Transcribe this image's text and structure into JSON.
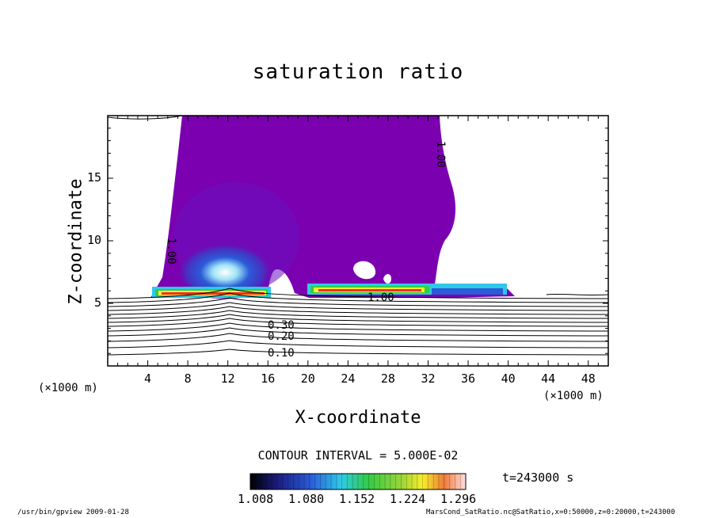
{
  "chart_data": {
    "type": "heatmap",
    "title": "saturation ratio",
    "xlabel": "X-coordinate",
    "ylabel": "Z-coordinate",
    "x_unit": "(×1000 m)",
    "y_unit": "(×1000 m)",
    "xlim": [
      0,
      50
    ],
    "ylim": [
      0,
      20
    ],
    "x_ticks": [
      "4",
      "8",
      "12",
      "16",
      "20",
      "24",
      "28",
      "32",
      "36",
      "40",
      "44",
      "48"
    ],
    "y_ticks": [
      "5",
      "10",
      "15"
    ],
    "contour_interval_text": "CONTOUR INTERVAL = 5.000E-02",
    "contour_labels": [
      "1.00",
      "1.00",
      "1.00",
      "0.30",
      "0.20",
      "0.10"
    ],
    "colorbar": {
      "ticks": [
        "1.008",
        "1.080",
        "1.152",
        "1.224",
        "1.296"
      ],
      "range": [
        1.008,
        1.296
      ]
    },
    "time_label": "t=243000 s",
    "colors": {
      "saturated": "#7b00b0",
      "core_high": "#ffffff",
      "blue": "#2a5bd8",
      "cyan": "#2fc9e8",
      "green": "#33cc44",
      "yellow": "#f6ee2a",
      "red": "#ee2f23"
    }
  },
  "footer": {
    "left": "/usr/bin/gpview  2009-01-28",
    "right": "MarsCond_SatRatio.nc@SatRatio,x=0:50000,z=0:20000,t=243000"
  }
}
